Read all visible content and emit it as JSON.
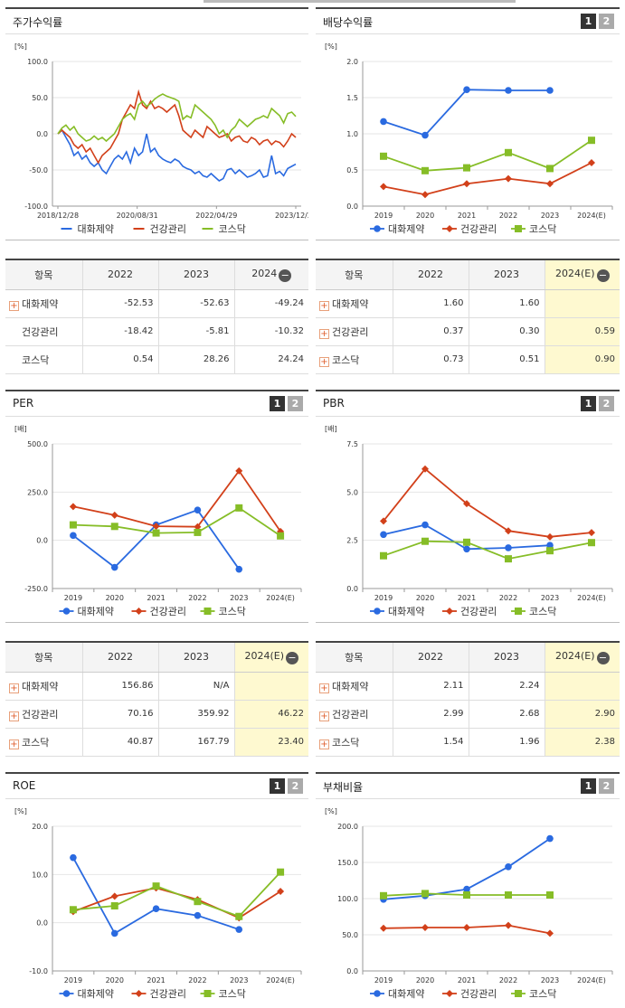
{
  "colors": {
    "blue": "#2a6ae0",
    "red": "#d2401a",
    "green": "#86bd27"
  },
  "icons": {
    "expand": "plus-box-icon",
    "collapse": "minus-circle-icon"
  },
  "toggle": {
    "one": "1",
    "two": "2"
  },
  "chart_data": [
    {
      "id": "stock",
      "type": "line",
      "title": "주가수익률",
      "ylabel": "[%]",
      "ylim": [
        -100,
        100
      ],
      "yticks": [
        "100.0",
        "50.0",
        "0.0",
        "-50.0",
        "-100.0"
      ],
      "xlabels": [
        "2018/12/28",
        "2020/08/31",
        "2022/04/29",
        "2023/12/28"
      ],
      "series": [
        {
          "name": "대화제약",
          "color": "#2a6ae0",
          "values": [
            0,
            5,
            -5,
            -15,
            -30,
            -25,
            -35,
            -30,
            -40,
            -45,
            -40,
            -50,
            -55,
            -45,
            -35,
            -30,
            -35,
            -25,
            -40,
            -20,
            -30,
            -25,
            0,
            -25,
            -20,
            -30,
            -35,
            -38,
            -40,
            -35,
            -38,
            -45,
            -48,
            -50,
            -55,
            -52,
            -58,
            -60,
            -55,
            -60,
            -65,
            -62,
            -50,
            -48,
            -55,
            -50,
            -55,
            -60,
            -58,
            -55,
            -50,
            -60,
            -58,
            -30,
            -55,
            -52,
            -58,
            -48,
            -45,
            -42
          ]
        },
        {
          "name": "건강관리",
          "color": "#d2401a",
          "values": [
            0,
            5,
            0,
            -5,
            -15,
            -20,
            -15,
            -25,
            -20,
            -30,
            -40,
            -30,
            -25,
            -20,
            -10,
            0,
            20,
            30,
            40,
            35,
            58,
            40,
            35,
            45,
            35,
            38,
            35,
            30,
            35,
            40,
            25,
            5,
            0,
            -5,
            5,
            0,
            -5,
            10,
            5,
            0,
            -5,
            -3,
            0,
            -10,
            -5,
            -3,
            -10,
            -12,
            -5,
            -8,
            -15,
            -10,
            -8,
            -15,
            -10,
            -12,
            -18,
            -10,
            0,
            -5
          ]
        },
        {
          "name": "코스닥",
          "color": "#86bd27",
          "values": [
            0,
            8,
            12,
            5,
            10,
            0,
            -5,
            -10,
            -8,
            -3,
            -8,
            -5,
            -10,
            -5,
            0,
            10,
            20,
            25,
            28,
            20,
            40,
            45,
            38,
            42,
            48,
            52,
            55,
            52,
            50,
            48,
            45,
            20,
            25,
            22,
            40,
            35,
            30,
            25,
            20,
            12,
            0,
            5,
            -5,
            5,
            10,
            20,
            15,
            10,
            15,
            20,
            22,
            25,
            22,
            35,
            30,
            25,
            15,
            28,
            30,
            24
          ]
        }
      ]
    },
    {
      "id": "dividend",
      "type": "line",
      "title": "배당수익률",
      "ylabel": "[%]",
      "ylim": [
        0,
        2
      ],
      "yticks": [
        "2.0",
        "1.5",
        "1.0",
        "0.5",
        "0.0"
      ],
      "categories": [
        "2019",
        "2020",
        "2021",
        "2022",
        "2023",
        "2024(E)"
      ],
      "series": [
        {
          "name": "대화제약",
          "color": "#2a6ae0",
          "values": [
            1.17,
            0.98,
            1.61,
            1.6,
            1.6,
            null
          ]
        },
        {
          "name": "건강관리",
          "color": "#d2401a",
          "values": [
            0.27,
            0.16,
            0.31,
            0.38,
            0.31,
            0.6
          ]
        },
        {
          "name": "코스닥",
          "color": "#86bd27",
          "values": [
            0.69,
            0.49,
            0.53,
            0.74,
            0.52,
            0.91
          ]
        }
      ]
    },
    {
      "id": "per",
      "type": "line",
      "title": "PER",
      "ylabel": "[배]",
      "ylim": [
        -250,
        500
      ],
      "yticks": [
        "500.0",
        "250.0",
        "0.0",
        "-250.0"
      ],
      "categories": [
        "2019",
        "2020",
        "2021",
        "2022",
        "2023",
        "2024(E)"
      ],
      "series": [
        {
          "name": "대화제약",
          "color": "#2a6ae0",
          "values": [
            25,
            -140,
            80,
            157,
            -150,
            null
          ]
        },
        {
          "name": "건강관리",
          "color": "#d2401a",
          "values": [
            175,
            130,
            73,
            70,
            360,
            46
          ]
        },
        {
          "name": "코스닥",
          "color": "#86bd27",
          "values": [
            80,
            72,
            38,
            41,
            168,
            23
          ]
        }
      ]
    },
    {
      "id": "pbr",
      "type": "line",
      "title": "PBR",
      "ylabel": "[배]",
      "ylim": [
        0,
        7.5
      ],
      "yticks": [
        "7.5",
        "5.0",
        "2.5",
        "0.0"
      ],
      "categories": [
        "2019",
        "2020",
        "2021",
        "2022",
        "2023",
        "2024(E)"
      ],
      "series": [
        {
          "name": "대화제약",
          "color": "#2a6ae0",
          "values": [
            2.8,
            3.3,
            2.05,
            2.11,
            2.24,
            null
          ]
        },
        {
          "name": "건강관리",
          "color": "#d2401a",
          "values": [
            3.5,
            6.2,
            4.4,
            2.99,
            2.68,
            2.9
          ]
        },
        {
          "name": "코스닥",
          "color": "#86bd27",
          "values": [
            1.7,
            2.45,
            2.4,
            1.54,
            1.96,
            2.38
          ]
        }
      ]
    },
    {
      "id": "roe",
      "type": "line",
      "title": "ROE",
      "ylabel": "[%]",
      "ylim": [
        -10,
        20
      ],
      "yticks": [
        "20.0",
        "10.0",
        "0.0",
        "-10.0"
      ],
      "categories": [
        "2019",
        "2020",
        "2021",
        "2022",
        "2023",
        "2024(E)"
      ],
      "series": [
        {
          "name": "대화제약",
          "color": "#2a6ae0",
          "values": [
            13.5,
            -2.2,
            2.9,
            1.5,
            -1.4,
            null
          ]
        },
        {
          "name": "건강관리",
          "color": "#d2401a",
          "values": [
            2.3,
            5.5,
            7.2,
            4.8,
            1.0,
            6.5
          ]
        },
        {
          "name": "코스닥",
          "color": "#86bd27",
          "values": [
            2.7,
            3.5,
            7.6,
            4.4,
            1.3,
            10.5
          ]
        }
      ]
    },
    {
      "id": "debt",
      "type": "line",
      "title": "부채비율",
      "ylabel": "[%]",
      "ylim": [
        0,
        200
      ],
      "yticks": [
        "200.0",
        "150.0",
        "100.0",
        "50.0",
        "0.0"
      ],
      "categories": [
        "2019",
        "2020",
        "2021",
        "2022",
        "2023",
        "2024(E)"
      ],
      "series": [
        {
          "name": "대화제약",
          "color": "#2a6ae0",
          "values": [
            99,
            104,
            113,
            144,
            183,
            null
          ]
        },
        {
          "name": "건강관리",
          "color": "#d2401a",
          "values": [
            59,
            60,
            60,
            63,
            52,
            null
          ]
        },
        {
          "name": "코스닥",
          "color": "#86bd27",
          "values": [
            104,
            107,
            105,
            105,
            105,
            null
          ]
        }
      ]
    }
  ],
  "tables": [
    {
      "id": "stock",
      "headers": [
        "항목",
        "2022",
        "2023",
        "2024"
      ],
      "rows": [
        {
          "label": "대화제약",
          "expand": true,
          "cells": [
            "-52.53",
            "-52.63",
            "-49.24"
          ]
        },
        {
          "label": "건강관리",
          "expand": false,
          "cells": [
            "-18.42",
            "-5.81",
            "-10.32"
          ]
        },
        {
          "label": "코스닥",
          "expand": false,
          "cells": [
            "0.54",
            "28.26",
            "24.24"
          ]
        }
      ]
    },
    {
      "id": "dividend",
      "headers": [
        "항목",
        "2022",
        "2023",
        "2024(E)"
      ],
      "rows": [
        {
          "label": "대화제약",
          "expand": true,
          "cells": [
            "1.60",
            "1.60",
            ""
          ]
        },
        {
          "label": "건강관리",
          "expand": true,
          "cells": [
            "0.37",
            "0.30",
            "0.59"
          ]
        },
        {
          "label": "코스닥",
          "expand": true,
          "cells": [
            "0.73",
            "0.51",
            "0.90"
          ]
        }
      ]
    },
    {
      "id": "per",
      "headers": [
        "항목",
        "2022",
        "2023",
        "2024(E)"
      ],
      "rows": [
        {
          "label": "대화제약",
          "expand": true,
          "cells": [
            "156.86",
            "N/A",
            ""
          ]
        },
        {
          "label": "건강관리",
          "expand": true,
          "cells": [
            "70.16",
            "359.92",
            "46.22"
          ]
        },
        {
          "label": "코스닥",
          "expand": true,
          "cells": [
            "40.87",
            "167.79",
            "23.40"
          ]
        }
      ]
    },
    {
      "id": "pbr",
      "headers": [
        "항목",
        "2022",
        "2023",
        "2024(E)"
      ],
      "rows": [
        {
          "label": "대화제약",
          "expand": true,
          "cells": [
            "2.11",
            "2.24",
            ""
          ]
        },
        {
          "label": "건강관리",
          "expand": true,
          "cells": [
            "2.99",
            "2.68",
            "2.90"
          ]
        },
        {
          "label": "코스닥",
          "expand": true,
          "cells": [
            "1.54",
            "1.96",
            "2.38"
          ]
        }
      ]
    }
  ]
}
